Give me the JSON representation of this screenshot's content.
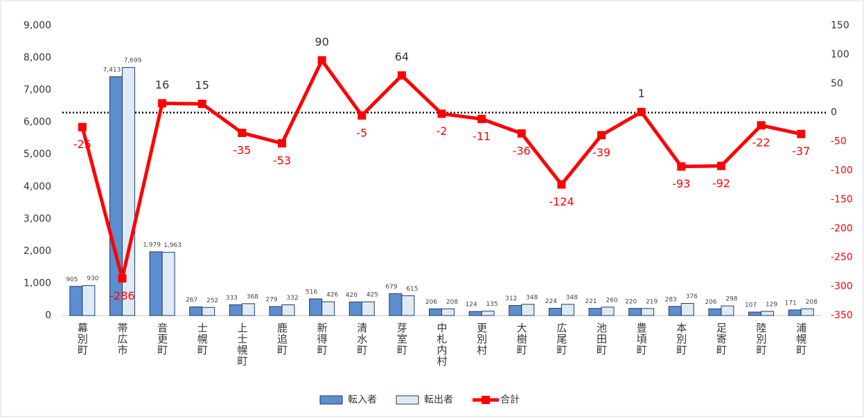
{
  "chart_data": {
    "type": "bar-line",
    "categories": [
      "幕別町",
      "帯広市",
      "音更町",
      "士幌町",
      "上士幌町",
      "鹿追町",
      "新得町",
      "清水町",
      "芽室町",
      "中札内村",
      "更別村",
      "大樹町",
      "広尾町",
      "池田町",
      "豊頃町",
      "本別町",
      "足寄町",
      "陸別町",
      "浦幌町"
    ],
    "series": [
      {
        "name": "転入者",
        "type": "bar",
        "color": "#5b8fd0",
        "values": [
          905,
          7413,
          1979,
          267,
          333,
          279,
          516,
          420,
          679,
          206,
          124,
          312,
          224,
          221,
          220,
          283,
          206,
          107,
          171
        ],
        "value_labels": [
          "905",
          "7,413",
          "1,979",
          "267",
          "333",
          "279",
          "516",
          "420",
          "679",
          "206",
          "124",
          "312",
          "224",
          "221",
          "220",
          "283",
          "206",
          "107",
          "171"
        ]
      },
      {
        "name": "転出者",
        "type": "bar",
        "color": "#deebf7",
        "values": [
          930,
          7699,
          1963,
          252,
          368,
          332,
          426,
          425,
          615,
          208,
          135,
          348,
          348,
          260,
          219,
          376,
          298,
          129,
          208
        ],
        "value_labels": [
          "930",
          "7,699",
          "1,963",
          "252",
          "368",
          "332",
          "426",
          "425",
          "615",
          "208",
          "135",
          "348",
          "348",
          "260",
          "219",
          "376",
          "298",
          "129",
          "208"
        ]
      },
      {
        "name": "合計",
        "type": "line",
        "axis": "y2",
        "color": "#ff0000",
        "values": [
          -25,
          -286,
          16,
          15,
          -35,
          -53,
          90,
          -5,
          64,
          -2,
          -11,
          -36,
          -124,
          -39,
          1,
          -93,
          -92,
          -22,
          -37
        ]
      }
    ],
    "ylim": [
      0,
      9000
    ],
    "yticks": [
      0,
      {
        "value": 1000,
        "label": "1,000"
      },
      {
        "value": 2000,
        "label": "2,000"
      },
      {
        "value": 3000,
        "label": "3,000"
      },
      {
        "value": 4000,
        "label": "4,000"
      },
      {
        "value": 5000,
        "label": "5,000"
      },
      {
        "value": 6000,
        "label": "6,000"
      },
      {
        "value": 7000,
        "label": "7,000"
      },
      {
        "value": 8000,
        "label": "8,000"
      },
      {
        "value": 9000,
        "label": "9,000"
      }
    ],
    "y2lim": [
      -350,
      150
    ],
    "y2ticks": [
      -350,
      -300,
      -250,
      -200,
      -150,
      -100,
      -50,
      0,
      50,
      100,
      150
    ],
    "y2_reference_line": 0,
    "legend": "bottom"
  }
}
